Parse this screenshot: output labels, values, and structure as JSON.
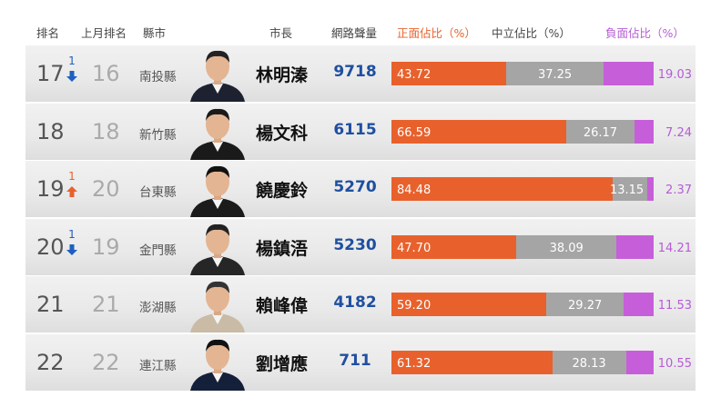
{
  "headers": {
    "rank": "排名",
    "prev_rank": "上月排名",
    "county": "縣市",
    "mayor": "市長",
    "volume": "網路聲量",
    "positive": "正面佔比（%）",
    "neutral": "中立佔比（%）",
    "negative": "負面佔比（%）"
  },
  "colors": {
    "positive": "#e8612c",
    "neutral": "#a5a5a5",
    "negative": "#c75ed9",
    "volume_text": "#1f4fa0",
    "arrow_down": "#1f5fbf",
    "arrow_up": "#e8612c"
  },
  "chart_data": {
    "type": "table",
    "series_names": [
      "正面佔比（%）",
      "中立佔比（%）",
      "負面佔比（%）"
    ],
    "rows": [
      {
        "rank": "17",
        "change": "1",
        "change_dir": "down",
        "prev_rank": "16",
        "county": "南投縣",
        "mayor": "林明溱",
        "volume": "9718",
        "positive": 43.72,
        "neutral": 37.25,
        "negative": 19.03
      },
      {
        "rank": "18",
        "change": "",
        "change_dir": "",
        "prev_rank": "18",
        "county": "新竹縣",
        "mayor": "楊文科",
        "volume": "6115",
        "positive": 66.59,
        "neutral": 26.17,
        "negative": 7.24
      },
      {
        "rank": "19",
        "change": "1",
        "change_dir": "up",
        "prev_rank": "20",
        "county": "台東縣",
        "mayor": "饒慶鈴",
        "volume": "5270",
        "positive": 84.48,
        "neutral": 13.15,
        "negative": 2.37
      },
      {
        "rank": "20",
        "change": "1",
        "change_dir": "down",
        "prev_rank": "19",
        "county": "金門縣",
        "mayor": "楊鎮浯",
        "volume": "5230",
        "positive": 47.7,
        "neutral": 38.09,
        "negative": 14.21
      },
      {
        "rank": "21",
        "change": "",
        "change_dir": "",
        "prev_rank": "21",
        "county": "澎湖縣",
        "mayor": "賴峰偉",
        "volume": "4182",
        "positive": 59.2,
        "neutral": 29.27,
        "negative": 11.53
      },
      {
        "rank": "22",
        "change": "",
        "change_dir": "",
        "prev_rank": "22",
        "county": "連江縣",
        "mayor": "劉增應",
        "volume": "711",
        "positive": 61.32,
        "neutral": 28.13,
        "negative": 10.55
      }
    ]
  }
}
